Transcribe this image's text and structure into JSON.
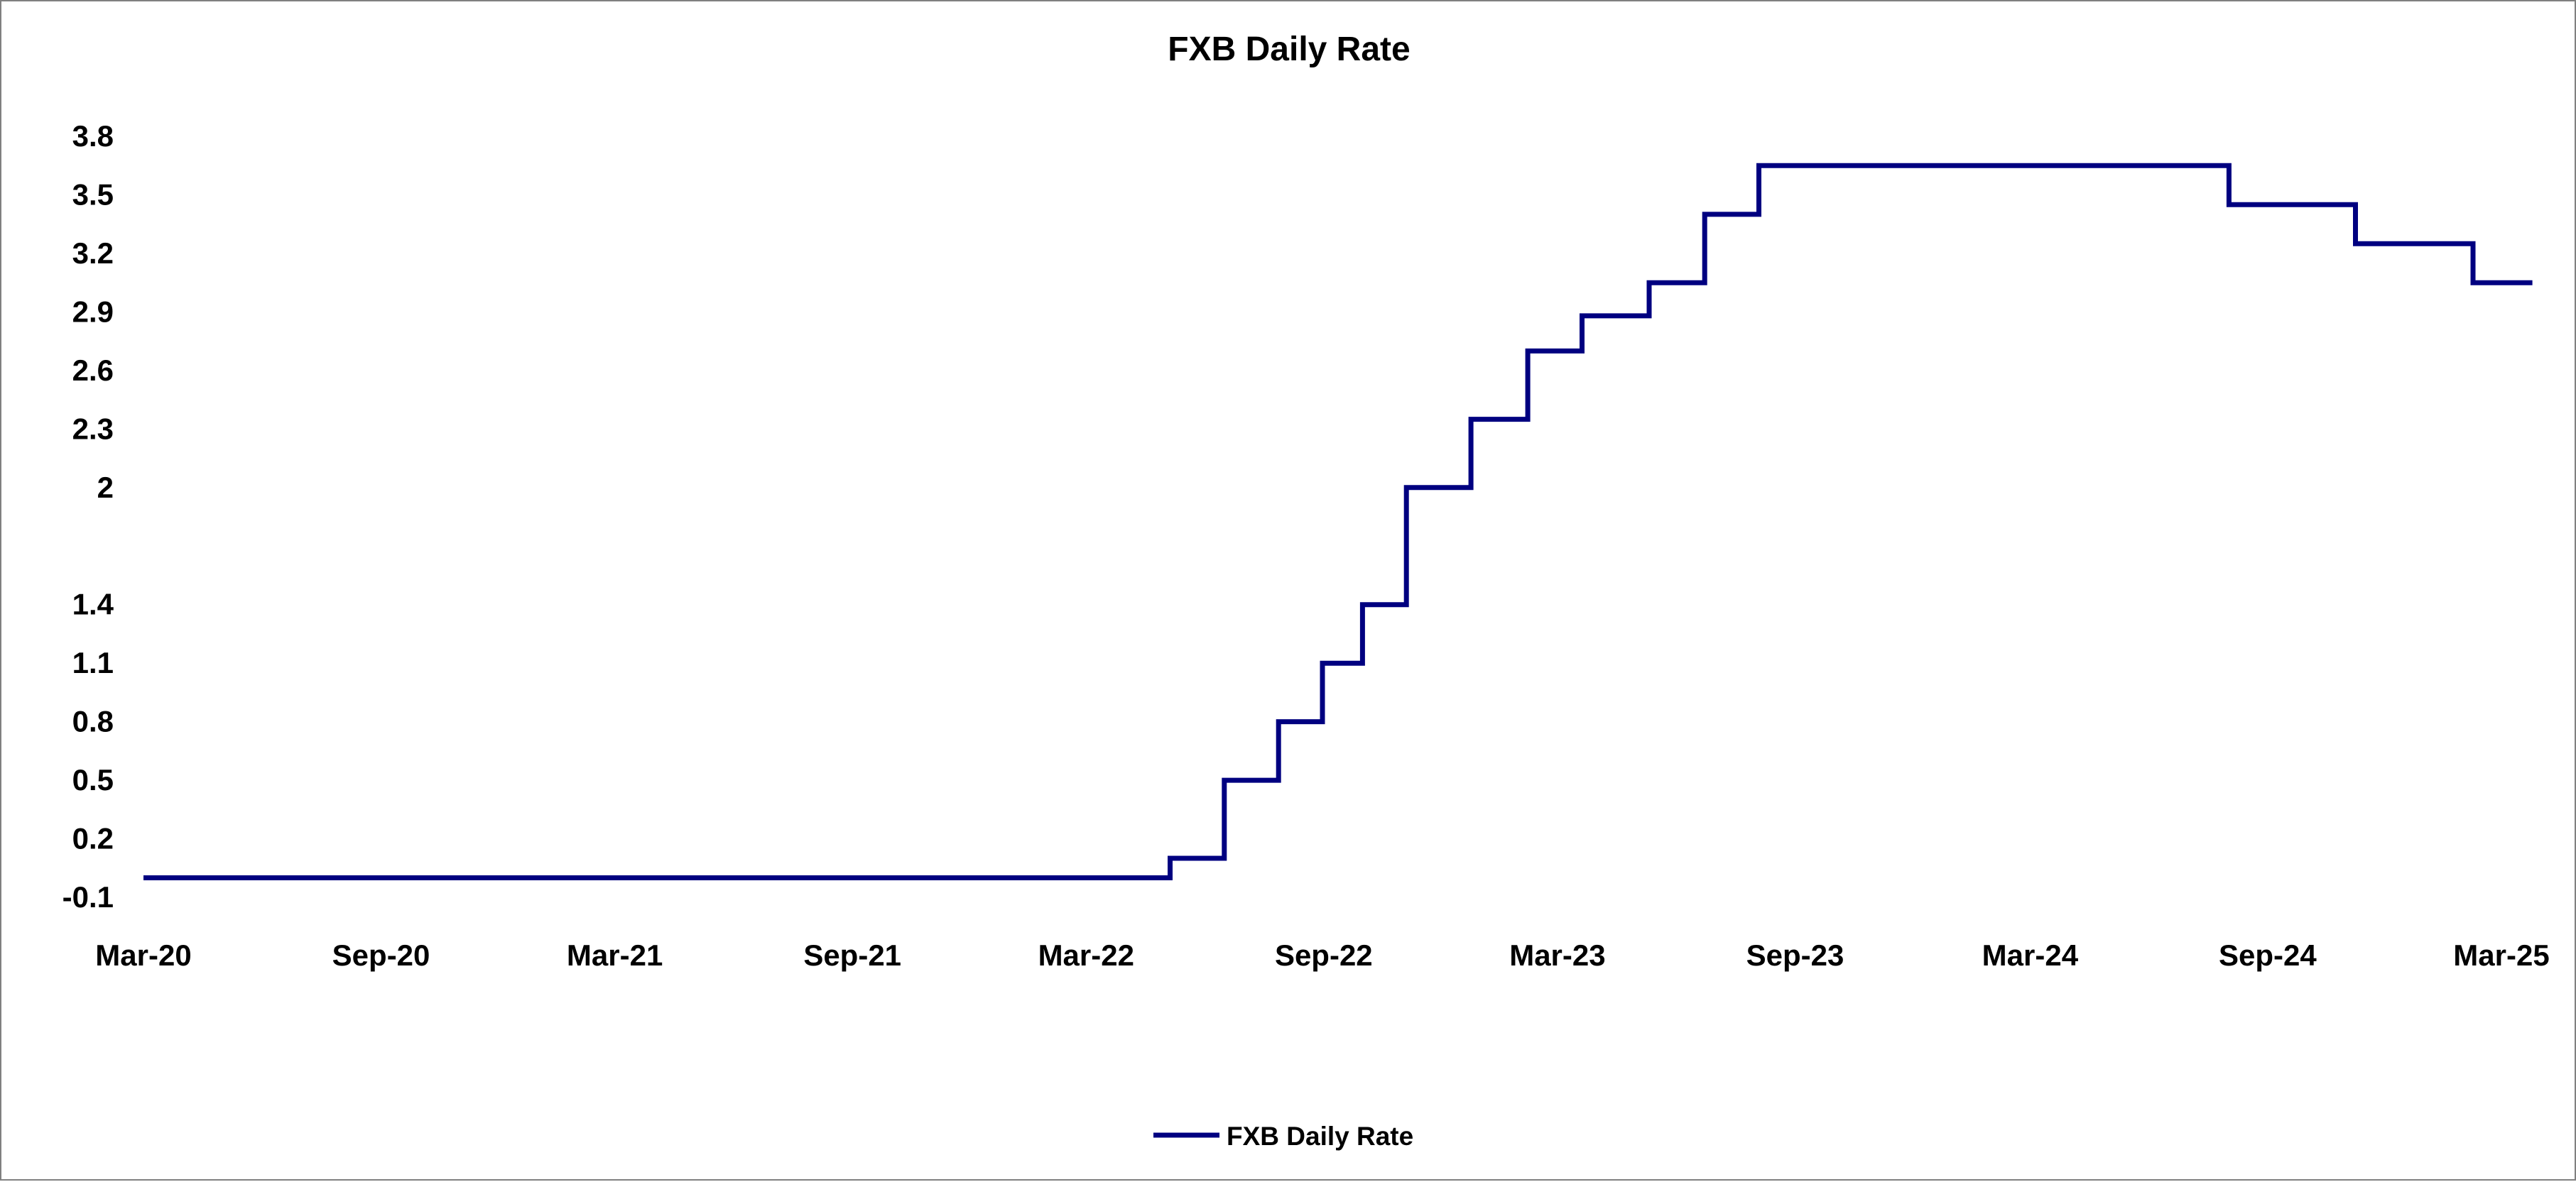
{
  "chart_data": {
    "type": "line",
    "title": "FXB Daily Rate",
    "xlabel": "",
    "ylabel": "",
    "step": true,
    "grid": false,
    "legend_position": "bottom",
    "x_range": [
      "2020-03",
      "2025-03"
    ],
    "ylim": [
      -0.1,
      3.8
    ],
    "y_ticks": [
      "-0.1",
      "0.2",
      "0.5",
      "0.8",
      "1.1",
      "1.4",
      "2",
      "2.3",
      "2.6",
      "2.9",
      "3.2",
      "3.5",
      "3.8"
    ],
    "y_tick_values": [
      -0.1,
      0.2,
      0.5,
      0.8,
      1.1,
      1.4,
      2.0,
      2.3,
      2.6,
      2.9,
      3.2,
      3.5,
      3.8
    ],
    "x_ticks": [
      {
        "label": "Mar-20",
        "date": "2020-03-01"
      },
      {
        "label": "Sep-20",
        "date": "2020-09-01"
      },
      {
        "label": "Mar-21",
        "date": "2021-03-01"
      },
      {
        "label": "Sep-21",
        "date": "2021-09-01"
      },
      {
        "label": "Mar-22",
        "date": "2022-03-01"
      },
      {
        "label": "Sep-22",
        "date": "2022-09-01"
      },
      {
        "label": "Mar-23",
        "date": "2023-03-01"
      },
      {
        "label": "Sep-23",
        "date": "2023-09-01"
      },
      {
        "label": "Mar-24",
        "date": "2024-03-01"
      },
      {
        "label": "Sep-24",
        "date": "2024-09-01"
      },
      {
        "label": "Mar-25",
        "date": "2025-03-01"
      }
    ],
    "series": [
      {
        "name": "FXB Daily Rate",
        "color": "#000080",
        "points": [
          {
            "date": "2020-03-01",
            "value": 0.0
          },
          {
            "date": "2022-05-05",
            "value": 0.1
          },
          {
            "date": "2022-06-16",
            "value": 0.5
          },
          {
            "date": "2022-07-28",
            "value": 0.8
          },
          {
            "date": "2022-08-31",
            "value": 1.1
          },
          {
            "date": "2022-10-01",
            "value": 1.4
          },
          {
            "date": "2022-11-04",
            "value": 2.0
          },
          {
            "date": "2022-12-24",
            "value": 2.35
          },
          {
            "date": "2023-02-06",
            "value": 2.7
          },
          {
            "date": "2023-03-20",
            "value": 2.88
          },
          {
            "date": "2023-05-11",
            "value": 3.05
          },
          {
            "date": "2023-06-23",
            "value": 3.4
          },
          {
            "date": "2023-08-04",
            "value": 3.65
          },
          {
            "date": "2024-08-02",
            "value": 3.45
          },
          {
            "date": "2024-11-08",
            "value": 3.25
          },
          {
            "date": "2025-02-07",
            "value": 3.05
          },
          {
            "date": "2025-03-25",
            "value": 3.05
          }
        ]
      }
    ]
  }
}
